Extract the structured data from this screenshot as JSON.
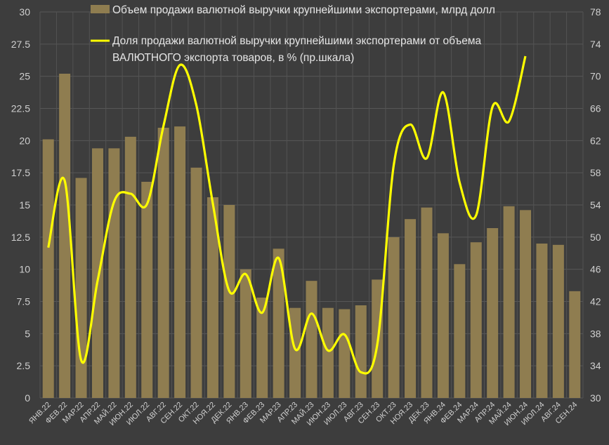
{
  "chart_data": {
    "type": "bar+line",
    "title": "",
    "categories": [
      "ЯНВ.22",
      "ФЕВ.22",
      "МАР.22",
      "АПР.22",
      "МАЙ.22",
      "ИЮН.22",
      "ИЮЛ.22",
      "АВГ.22",
      "СЕН.22",
      "ОКТ.22",
      "НОЯ.22",
      "ДЕК.22",
      "ЯНВ.23",
      "ФЕВ.23",
      "МАР.23",
      "АПР.23",
      "МАЙ.23",
      "ИЮН.23",
      "ИЮЛ.23",
      "АВГ.23",
      "СЕН.23",
      "ОКТ.23",
      "НОЯ.23",
      "ДЕК.23",
      "ЯНВ.24",
      "ФЕВ.24",
      "МАР.24",
      "АПР.24",
      "МАЙ.24",
      "ИЮН.24",
      "ИЮЛ.24",
      "АВГ.24",
      "СЕН.24"
    ],
    "series": [
      {
        "name": "Объем продажи  валютной выручки крупнейшими экспортерами, млрд долл",
        "type": "bar",
        "axis": "left",
        "color": "#8f7d50",
        "values": [
          20.1,
          25.2,
          17.1,
          19.4,
          19.4,
          20.3,
          16.8,
          21.0,
          21.1,
          17.9,
          15.6,
          15.0,
          10.0,
          7.8,
          11.6,
          7.0,
          9.1,
          7.0,
          6.9,
          7.2,
          9.2,
          12.5,
          13.9,
          14.8,
          12.8,
          10.4,
          12.1,
          13.2,
          14.9,
          14.6,
          12.0,
          11.9,
          8.3
        ]
      },
      {
        "name_lines": [
          "Доля продажи валютной выручки крупнейшими экспортерами от объема",
          "ВАЛЮТНОГО экспорта товаров, в % (пр.шкала)"
        ],
        "type": "line",
        "axis": "right",
        "color": "#ffff00",
        "values": [
          48.7,
          57.0,
          34.7,
          44.6,
          54.4,
          55.4,
          54.1,
          63.8,
          71.4,
          66.4,
          54.2,
          43.3,
          45.4,
          40.6,
          47.4,
          36.1,
          40.5,
          35.9,
          37.9,
          33.2,
          36.7,
          59.0,
          64.0,
          59.8,
          68.0,
          56.8,
          52.7,
          66.2,
          64.4,
          72.5,
          null,
          null,
          null
        ]
      }
    ],
    "y_left": {
      "range": [
        0,
        30
      ],
      "ticks": [
        "0",
        "2.5",
        "5",
        "7.5",
        "10",
        "12.5",
        "15",
        "17.5",
        "20",
        "22.5",
        "25",
        "27.5",
        "30"
      ]
    },
    "y_right": {
      "range": [
        30,
        78
      ],
      "ticks": [
        "30",
        "34",
        "38",
        "42",
        "46",
        "50",
        "54",
        "58",
        "62",
        "66",
        "70",
        "74",
        "78"
      ]
    },
    "grid": true,
    "legend": "top",
    "background": "#3d3d3d"
  }
}
